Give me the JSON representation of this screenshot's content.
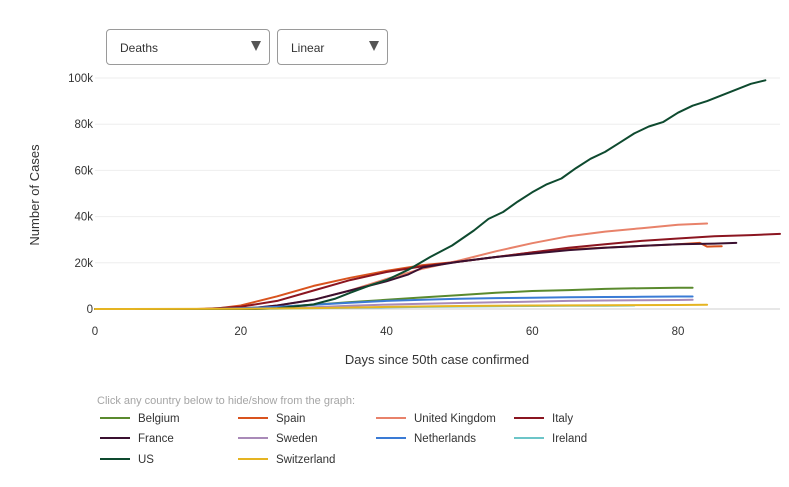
{
  "controls": {
    "metric": "Deaths",
    "scale": "Linear"
  },
  "legend_hint": "Click any country below to hide/show from the graph:",
  "chart_data": {
    "type": "line",
    "title": "",
    "xlabel": "Days since 50th case confirmed",
    "ylabel": "Number of Cases",
    "xlim": [
      0,
      94
    ],
    "ylim": [
      0,
      100000
    ],
    "xticks": [
      "0",
      "20",
      "40",
      "60",
      "80"
    ],
    "yticks": [
      "0",
      "20k",
      "40k",
      "60k",
      "80k",
      "100k"
    ],
    "grid": "horizontal",
    "legend_placement": "bottom",
    "series": [
      {
        "name": "Belgium",
        "color": "#5a8a2e",
        "x": [
          0,
          15,
          20,
          25,
          30,
          35,
          40,
          45,
          50,
          55,
          60,
          65,
          70,
          75,
          80,
          82
        ],
        "y": [
          0,
          0,
          300,
          900,
          1800,
          3000,
          4000,
          5000,
          6000,
          7000,
          7800,
          8200,
          8700,
          9000,
          9200,
          9200
        ]
      },
      {
        "name": "Spain",
        "color": "#d9531e",
        "x": [
          0,
          14,
          17,
          20,
          25,
          30,
          35,
          40,
          45,
          50,
          55,
          60,
          65,
          70,
          75,
          80,
          83,
          84,
          85,
          86
        ],
        "y": [
          0,
          0,
          300,
          1500,
          5500,
          10000,
          13500,
          16500,
          19000,
          20500,
          22500,
          24500,
          25800,
          26600,
          27300,
          28000,
          28600,
          27000,
          27100,
          27200
        ]
      },
      {
        "name": "United Kingdom",
        "color": "#e8826a",
        "x": [
          0,
          18,
          22,
          25,
          30,
          35,
          40,
          45,
          50,
          55,
          60,
          65,
          70,
          75,
          80,
          84
        ],
        "y": [
          0,
          0,
          500,
          1500,
          4000,
          8000,
          13000,
          17500,
          21000,
          25000,
          28500,
          31500,
          33500,
          35000,
          36500,
          37000
        ]
      },
      {
        "name": "Italy",
        "color": "#8b1520",
        "x": [
          0,
          15,
          20,
          25,
          30,
          35,
          40,
          45,
          50,
          55,
          60,
          65,
          70,
          75,
          80,
          85,
          90,
          94
        ],
        "y": [
          0,
          0,
          1000,
          3500,
          8000,
          12500,
          16000,
          18500,
          20500,
          22500,
          24500,
          26500,
          28000,
          29500,
          30500,
          31500,
          32000,
          32500
        ]
      },
      {
        "name": "France",
        "color": "#3a1030",
        "x": [
          0,
          18,
          22,
          25,
          30,
          35,
          40,
          43,
          45,
          50,
          55,
          60,
          65,
          70,
          75,
          80,
          85,
          88
        ],
        "y": [
          0,
          0,
          500,
          1500,
          4000,
          8000,
          12000,
          15000,
          18000,
          20500,
          22500,
          24000,
          25500,
          26500,
          27300,
          28000,
          28300,
          28600
        ]
      },
      {
        "name": "Sweden",
        "color": "#a98ab8",
        "x": [
          0,
          20,
          25,
          30,
          35,
          40,
          45,
          50,
          55,
          60,
          65,
          70,
          75,
          80,
          82
        ],
        "y": [
          0,
          0,
          300,
          800,
          1400,
          1900,
          2300,
          2600,
          2900,
          3200,
          3500,
          3700,
          3800,
          3900,
          4000
        ]
      },
      {
        "name": "Netherlands",
        "color": "#3a7bd5",
        "x": [
          0,
          16,
          20,
          25,
          30,
          35,
          40,
          45,
          50,
          55,
          60,
          65,
          70,
          75,
          80,
          82
        ],
        "y": [
          0,
          0,
          300,
          900,
          1800,
          2700,
          3500,
          4000,
          4400,
          4700,
          4900,
          5100,
          5200,
          5300,
          5400,
          5400
        ]
      },
      {
        "name": "Ireland",
        "color": "#6cc5c8",
        "x": [
          0,
          22,
          30,
          35,
          40,
          45,
          50,
          55,
          60,
          65,
          70,
          74
        ],
        "y": [
          0,
          0,
          300,
          500,
          700,
          900,
          1100,
          1200,
          1300,
          1400,
          1450,
          1500
        ]
      },
      {
        "name": "US",
        "color": "#0e4a2f",
        "x": [
          0,
          22,
          25,
          30,
          33,
          35,
          38,
          40,
          43,
          46,
          49,
          52,
          54,
          56,
          58,
          60,
          62,
          64,
          66,
          68,
          70,
          72,
          74,
          76,
          78,
          80,
          82,
          84,
          86,
          88,
          90,
          92
        ],
        "y": [
          0,
          0,
          300,
          2000,
          4500,
          7000,
          10500,
          12500,
          17000,
          22500,
          27500,
          34000,
          39000,
          42000,
          46500,
          50500,
          54000,
          56500,
          61000,
          65000,
          68000,
          72000,
          76000,
          79000,
          81000,
          85000,
          88000,
          90000,
          92500,
          95000,
          97500,
          99000
        ]
      },
      {
        "name": "Switzerland",
        "color": "#e5b422",
        "x": [
          0,
          20,
          30,
          40,
          50,
          60,
          70,
          80,
          84
        ],
        "y": [
          0,
          100,
          400,
          900,
          1300,
          1500,
          1650,
          1750,
          1800
        ]
      }
    ]
  }
}
